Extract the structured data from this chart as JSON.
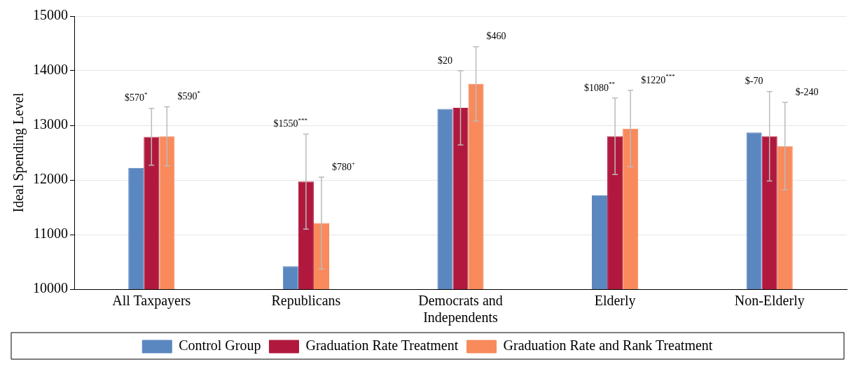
{
  "chart_data": {
    "type": "bar",
    "ylabel": "Ideal Spending Level",
    "categories": [
      "All Taxpayers",
      "Republicans",
      "Democrats and Independents",
      "Elderly",
      "Non-Elderly"
    ],
    "series": [
      {
        "name": "Control Group",
        "color": "#5b87c0",
        "values": [
          12220,
          10420,
          13300,
          11720,
          12870
        ]
      },
      {
        "name": "Graduation Rate Treatment",
        "color": "#b0193d",
        "values": [
          12790,
          11970,
          13320,
          12800,
          12800
        ],
        "errors": [
          520,
          870,
          680,
          700,
          820
        ]
      },
      {
        "name": "Graduation Rate and Rank Treatment",
        "color": "#f88a5c",
        "values": [
          12800,
          11210,
          13760,
          12940,
          12620
        ],
        "errors": [
          540,
          840,
          680,
          700,
          800
        ]
      }
    ],
    "ylim": [
      10000,
      15000
    ],
    "yticks": [
      10000,
      11000,
      12000,
      13000,
      14000,
      15000
    ],
    "grid": "y",
    "legend": "bottom",
    "annotations": [
      "$570$^{*}$",
      "$590$^{*}$",
      "$1550$^{***}$",
      "$780$^{+}$",
      "$20",
      "$460",
      "$1080$^{**}$",
      "$1220$^{***}$",
      "$-70",
      "$-240"
    ]
  }
}
